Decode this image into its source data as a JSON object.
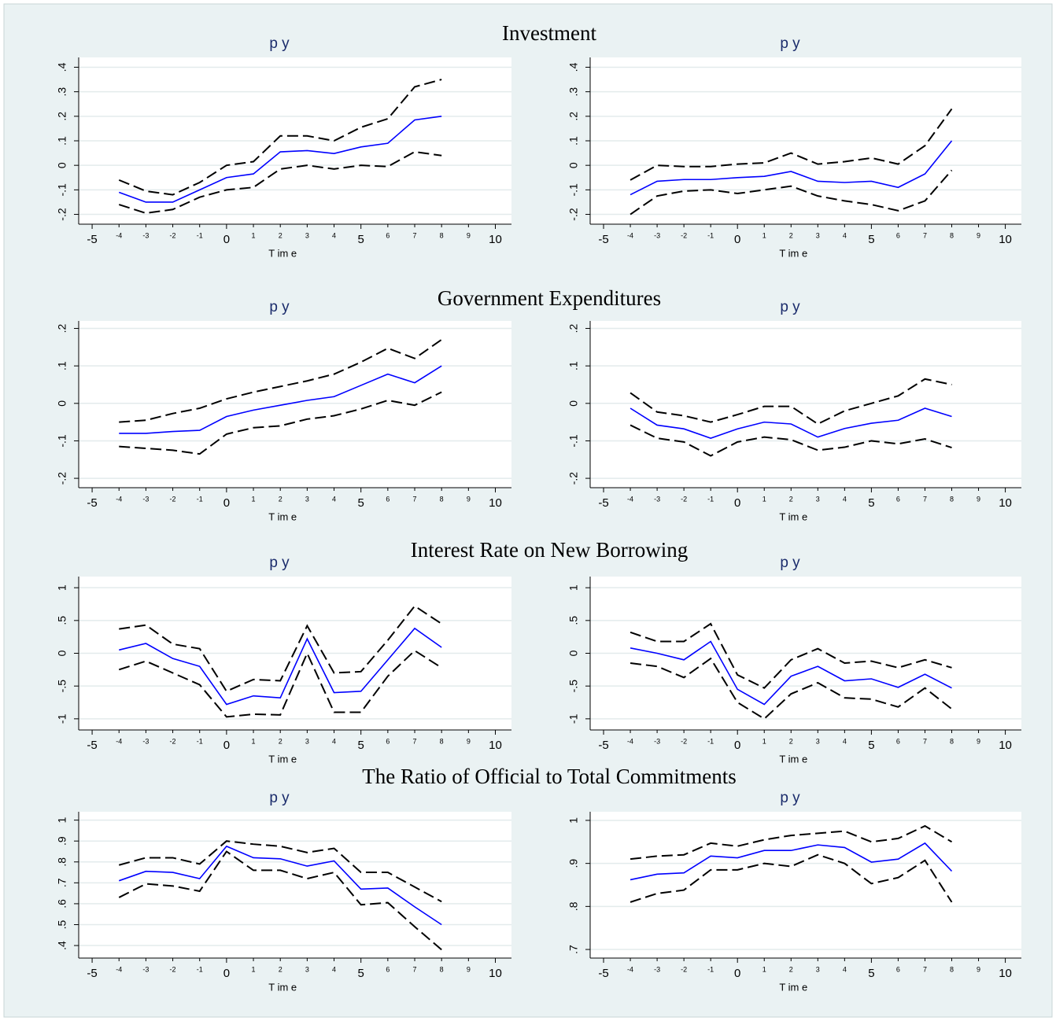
{
  "sections": [
    "Investment",
    "Government Expenditures",
    "Interest Rate on New Borrowing",
    "The Ratio of Official to Total Commitments"
  ],
  "chart_data": [
    {
      "type": "line",
      "title": "p y",
      "xlabel": "T im e",
      "x": [
        -4,
        -3,
        -2,
        -1,
        0,
        1,
        2,
        3,
        4,
        5,
        6,
        7,
        8
      ],
      "xlim": [
        -5.5,
        10.6
      ],
      "xticks": [
        -5,
        -4,
        -3,
        -2,
        -1,
        0,
        1,
        2,
        3,
        4,
        5,
        6,
        7,
        8,
        9,
        10
      ],
      "ylim": [
        -0.24,
        0.44
      ],
      "yticks": [
        {
          "value": 0.4,
          "label": ".4"
        },
        {
          "value": 0.3,
          "label": ".3"
        },
        {
          "value": 0.2,
          "label": ".2"
        },
        {
          "value": 0.1,
          "label": ".1"
        },
        0,
        {
          "value": -0.1,
          "label": "-.1"
        },
        {
          "value": -0.2,
          "label": "-.2"
        }
      ],
      "grid": true,
      "series": [
        {
          "color": "#0000ff",
          "dashed": false,
          "values": [
            -0.11,
            -0.15,
            -0.15,
            -0.1,
            -0.05,
            -0.035,
            0.055,
            0.06,
            0.048,
            0.075,
            0.09,
            0.185,
            0.2
          ]
        },
        {
          "color": "#000000",
          "dashed": true,
          "values": [
            -0.06,
            -0.105,
            -0.12,
            -0.07,
            0,
            0.015,
            0.12,
            0.12,
            0.1,
            0.155,
            0.19,
            0.32,
            0.35
          ]
        },
        {
          "color": "#000000",
          "dashed": true,
          "values": [
            -0.16,
            -0.195,
            -0.18,
            -0.13,
            -0.1,
            -0.09,
            -0.015,
            0,
            -0.015,
            0,
            -0.005,
            0.055,
            0.04
          ]
        }
      ]
    },
    {
      "type": "line",
      "title": "p y",
      "xlabel": "T im e",
      "x": [
        -4,
        -3,
        -2,
        -1,
        0,
        1,
        2,
        3,
        4,
        5,
        6,
        7,
        8
      ],
      "xlim": [
        -5.5,
        10.6
      ],
      "xticks": [
        -5,
        -4,
        -3,
        -2,
        -1,
        0,
        1,
        2,
        3,
        4,
        5,
        6,
        7,
        8,
        9,
        10
      ],
      "ylim": [
        -0.24,
        0.44
      ],
      "yticks": [
        {
          "value": 0.4,
          "label": ".4"
        },
        {
          "value": 0.3,
          "label": ".3"
        },
        {
          "value": 0.2,
          "label": ".2"
        },
        {
          "value": 0.1,
          "label": ".1"
        },
        0,
        {
          "value": -0.1,
          "label": "-.1"
        },
        {
          "value": -0.2,
          "label": "-.2"
        }
      ],
      "grid": true,
      "series": [
        {
          "color": "#0000ff",
          "dashed": false,
          "values": [
            -0.12,
            -0.065,
            -0.058,
            -0.058,
            -0.05,
            -0.045,
            -0.025,
            -0.065,
            -0.07,
            -0.065,
            -0.09,
            -0.035,
            0.1
          ]
        },
        {
          "color": "#000000",
          "dashed": true,
          "values": [
            -0.06,
            0,
            -0.005,
            -0.005,
            0.005,
            0.01,
            0.05,
            0.005,
            0.015,
            0.03,
            0.005,
            0.08,
            0.23
          ]
        },
        {
          "color": "#000000",
          "dashed": true,
          "values": [
            -0.2,
            -0.125,
            -0.105,
            -0.1,
            -0.115,
            -0.1,
            -0.085,
            -0.125,
            -0.145,
            -0.16,
            -0.185,
            -0.145,
            -0.02
          ]
        }
      ]
    },
    {
      "type": "line",
      "title": "p y",
      "xlabel": "T im e",
      "x": [
        -4,
        -3,
        -2,
        -1,
        0,
        1,
        2,
        3,
        4,
        5,
        6,
        7,
        8
      ],
      "xlim": [
        -5.5,
        10.6
      ],
      "xticks": [
        -5,
        -4,
        -3,
        -2,
        -1,
        0,
        1,
        2,
        3,
        4,
        5,
        6,
        7,
        8,
        9,
        10
      ],
      "ylim": [
        -0.225,
        0.22
      ],
      "yticks": [
        {
          "value": 0.2,
          "label": ".2"
        },
        {
          "value": 0.1,
          "label": ".1"
        },
        0,
        {
          "value": -0.1,
          "label": "-.1"
        },
        {
          "value": -0.2,
          "label": "-.2"
        }
      ],
      "grid": true,
      "series": [
        {
          "color": "#0000ff",
          "dashed": false,
          "values": [
            -0.08,
            -0.08,
            -0.075,
            -0.072,
            -0.035,
            -0.018,
            -0.005,
            0.008,
            0.018,
            0.048,
            0.078,
            0.055,
            0.1
          ]
        },
        {
          "color": "#000000",
          "dashed": true,
          "values": [
            -0.05,
            -0.045,
            -0.027,
            -0.013,
            0.012,
            0.03,
            0.045,
            0.06,
            0.078,
            0.11,
            0.147,
            0.12,
            0.17
          ]
        },
        {
          "color": "#000000",
          "dashed": true,
          "values": [
            -0.115,
            -0.12,
            -0.125,
            -0.135,
            -0.082,
            -0.065,
            -0.06,
            -0.042,
            -0.033,
            -0.015,
            0.008,
            -0.005,
            0.03
          ]
        }
      ]
    },
    {
      "type": "line",
      "title": "p y",
      "xlabel": "T im e",
      "x": [
        -4,
        -3,
        -2,
        -1,
        0,
        1,
        2,
        3,
        4,
        5,
        6,
        7,
        8
      ],
      "xlim": [
        -5.5,
        10.6
      ],
      "xticks": [
        -5,
        -4,
        -3,
        -2,
        -1,
        0,
        1,
        2,
        3,
        4,
        5,
        6,
        7,
        8,
        9,
        10
      ],
      "ylim": [
        -0.225,
        0.22
      ],
      "yticks": [
        {
          "value": 0.2,
          "label": ".2"
        },
        {
          "value": 0.1,
          "label": ".1"
        },
        0,
        {
          "value": -0.1,
          "label": "-.1"
        },
        {
          "value": -0.2,
          "label": "-.2"
        }
      ],
      "grid": true,
      "series": [
        {
          "color": "#0000ff",
          "dashed": false,
          "values": [
            -0.013,
            -0.058,
            -0.068,
            -0.093,
            -0.068,
            -0.05,
            -0.055,
            -0.09,
            -0.067,
            -0.053,
            -0.045,
            -0.013,
            -0.035
          ]
        },
        {
          "color": "#000000",
          "dashed": true,
          "values": [
            0.028,
            -0.023,
            -0.033,
            -0.05,
            -0.03,
            -0.008,
            -0.008,
            -0.055,
            -0.02,
            0,
            0.02,
            0.065,
            0.05
          ]
        },
        {
          "color": "#000000",
          "dashed": true,
          "values": [
            -0.058,
            -0.093,
            -0.103,
            -0.14,
            -0.103,
            -0.09,
            -0.097,
            -0.125,
            -0.117,
            -0.1,
            -0.108,
            -0.095,
            -0.118
          ]
        }
      ]
    },
    {
      "type": "line",
      "title": "p y",
      "xlabel": "T im e",
      "x": [
        -4,
        -3,
        -2,
        -1,
        0,
        1,
        2,
        3,
        4,
        5,
        6,
        7,
        8
      ],
      "xlim": [
        -5.5,
        10.6
      ],
      "xticks": [
        -5,
        -4,
        -3,
        -2,
        -1,
        0,
        1,
        2,
        3,
        4,
        5,
        6,
        7,
        8,
        9,
        10
      ],
      "ylim": [
        -1.17,
        1.17
      ],
      "yticks": [
        1,
        {
          "value": 0.5,
          "label": ".5"
        },
        0,
        {
          "value": -0.5,
          "label": "-.5"
        },
        -1
      ],
      "grid": true,
      "series": [
        {
          "color": "#0000ff",
          "dashed": false,
          "values": [
            0.05,
            0.15,
            -0.08,
            -0.2,
            -0.78,
            -0.65,
            -0.68,
            0.22,
            -0.6,
            -0.58,
            -0.1,
            0.38,
            0.09
          ]
        },
        {
          "color": "#000000",
          "dashed": true,
          "values": [
            0.37,
            0.43,
            0.14,
            0.07,
            -0.58,
            -0.4,
            -0.42,
            0.42,
            -0.3,
            -0.28,
            0.2,
            0.72,
            0.45
          ]
        },
        {
          "color": "#000000",
          "dashed": true,
          "values": [
            -0.25,
            -0.12,
            -0.3,
            -0.48,
            -0.97,
            -0.93,
            -0.94,
            0,
            -0.9,
            -0.9,
            -0.35,
            0.04,
            -0.22
          ]
        }
      ]
    },
    {
      "type": "line",
      "title": "p y",
      "xlabel": "T im e",
      "x": [
        -4,
        -3,
        -2,
        -1,
        0,
        1,
        2,
        3,
        4,
        5,
        6,
        7,
        8
      ],
      "xlim": [
        -5.5,
        10.6
      ],
      "xticks": [
        -5,
        -4,
        -3,
        -2,
        -1,
        0,
        1,
        2,
        3,
        4,
        5,
        6,
        7,
        8,
        9,
        10
      ],
      "ylim": [
        -1.17,
        1.17
      ],
      "yticks": [
        1,
        {
          "value": 0.5,
          "label": ".5"
        },
        0,
        {
          "value": -0.5,
          "label": "-.5"
        },
        -1
      ],
      "grid": true,
      "series": [
        {
          "color": "#0000ff",
          "dashed": false,
          "values": [
            0.08,
            0,
            -0.1,
            0.18,
            -0.55,
            -0.78,
            -0.35,
            -0.2,
            -0.42,
            -0.39,
            -0.52,
            -0.32,
            -0.53
          ]
        },
        {
          "color": "#000000",
          "dashed": true,
          "values": [
            0.32,
            0.18,
            0.18,
            0.45,
            -0.33,
            -0.53,
            -0.1,
            0.07,
            -0.15,
            -0.12,
            -0.22,
            -0.1,
            -0.22
          ]
        },
        {
          "color": "#000000",
          "dashed": true,
          "values": [
            -0.15,
            -0.2,
            -0.37,
            -0.08,
            -0.75,
            -1,
            -0.62,
            -0.45,
            -0.68,
            -0.7,
            -0.82,
            -0.53,
            -0.85
          ]
        }
      ]
    },
    {
      "type": "line",
      "title": "p y",
      "xlabel": "T im e",
      "x": [
        -4,
        -3,
        -2,
        -1,
        0,
        1,
        2,
        3,
        4,
        5,
        6,
        7,
        8
      ],
      "xlim": [
        -5.5,
        10.6
      ],
      "xticks": [
        -5,
        -4,
        -3,
        -2,
        -1,
        0,
        1,
        2,
        3,
        4,
        5,
        6,
        7,
        8,
        9,
        10
      ],
      "ylim": [
        0.34,
        1.04
      ],
      "yticks": [
        1,
        {
          "value": 0.9,
          "label": ".9"
        },
        {
          "value": 0.8,
          "label": ".8"
        },
        {
          "value": 0.7,
          "label": ".7"
        },
        {
          "value": 0.6,
          "label": ".6"
        },
        {
          "value": 0.5,
          "label": ".5"
        },
        {
          "value": 0.4,
          "label": ".4"
        }
      ],
      "grid": true,
      "series": [
        {
          "color": "#0000ff",
          "dashed": false,
          "values": [
            0.71,
            0.755,
            0.75,
            0.72,
            0.875,
            0.82,
            0.815,
            0.78,
            0.805,
            0.67,
            0.675,
            0.585,
            0.5
          ]
        },
        {
          "color": "#000000",
          "dashed": true,
          "values": [
            0.785,
            0.82,
            0.82,
            0.79,
            0.9,
            0.885,
            0.875,
            0.845,
            0.865,
            0.75,
            0.75,
            0.68,
            0.61
          ]
        },
        {
          "color": "#000000",
          "dashed": true,
          "values": [
            0.63,
            0.695,
            0.685,
            0.66,
            0.85,
            0.76,
            0.76,
            0.72,
            0.75,
            0.595,
            0.605,
            0.49,
            0.38
          ]
        }
      ]
    },
    {
      "type": "line",
      "title": "p y",
      "xlabel": "T im e",
      "x": [
        -4,
        -3,
        -2,
        -1,
        0,
        1,
        2,
        3,
        4,
        5,
        6,
        7,
        8
      ],
      "xlim": [
        -5.5,
        10.6
      ],
      "xticks": [
        -5,
        -4,
        -3,
        -2,
        -1,
        0,
        1,
        2,
        3,
        4,
        5,
        6,
        7,
        8,
        9,
        10
      ],
      "ylim": [
        0.68,
        1.02
      ],
      "yticks": [
        1,
        {
          "value": 0.9,
          "label": ".9"
        },
        {
          "value": 0.8,
          "label": ".8"
        },
        {
          "value": 0.7,
          "label": ".7"
        }
      ],
      "grid": true,
      "series": [
        {
          "color": "#0000ff",
          "dashed": false,
          "values": [
            0.862,
            0.875,
            0.878,
            0.917,
            0.913,
            0.93,
            0.93,
            0.943,
            0.937,
            0.903,
            0.91,
            0.947,
            0.882
          ]
        },
        {
          "color": "#000000",
          "dashed": true,
          "values": [
            0.91,
            0.917,
            0.92,
            0.947,
            0.94,
            0.955,
            0.965,
            0.97,
            0.975,
            0.95,
            0.958,
            0.987,
            0.95
          ]
        },
        {
          "color": "#000000",
          "dashed": true,
          "values": [
            0.81,
            0.83,
            0.838,
            0.885,
            0.885,
            0.9,
            0.893,
            0.92,
            0.9,
            0.853,
            0.867,
            0.907,
            0.81
          ]
        }
      ]
    }
  ]
}
